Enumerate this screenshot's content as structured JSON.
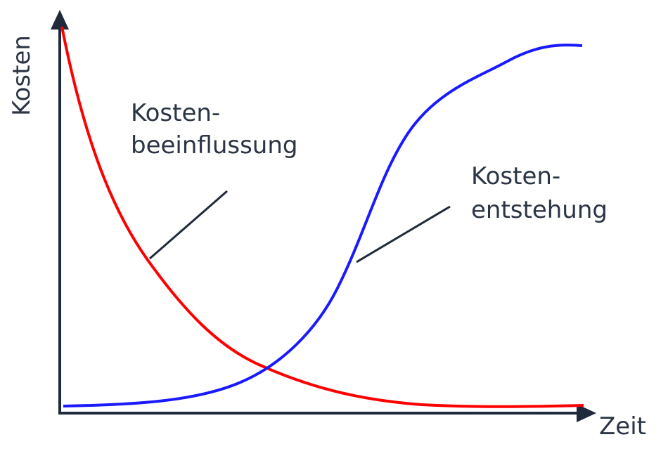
{
  "axes": {
    "y_label": "Kosten",
    "x_label": "Zeit",
    "axis_color": "#1f2a3a"
  },
  "curves": [
    {
      "label_line1": "Kosten-",
      "label_line2": "beeinflussung",
      "color": "#ff0000"
    },
    {
      "label_line1": "Kosten-",
      "label_line2": "entstehung",
      "color": "#1a1aff"
    }
  ]
}
